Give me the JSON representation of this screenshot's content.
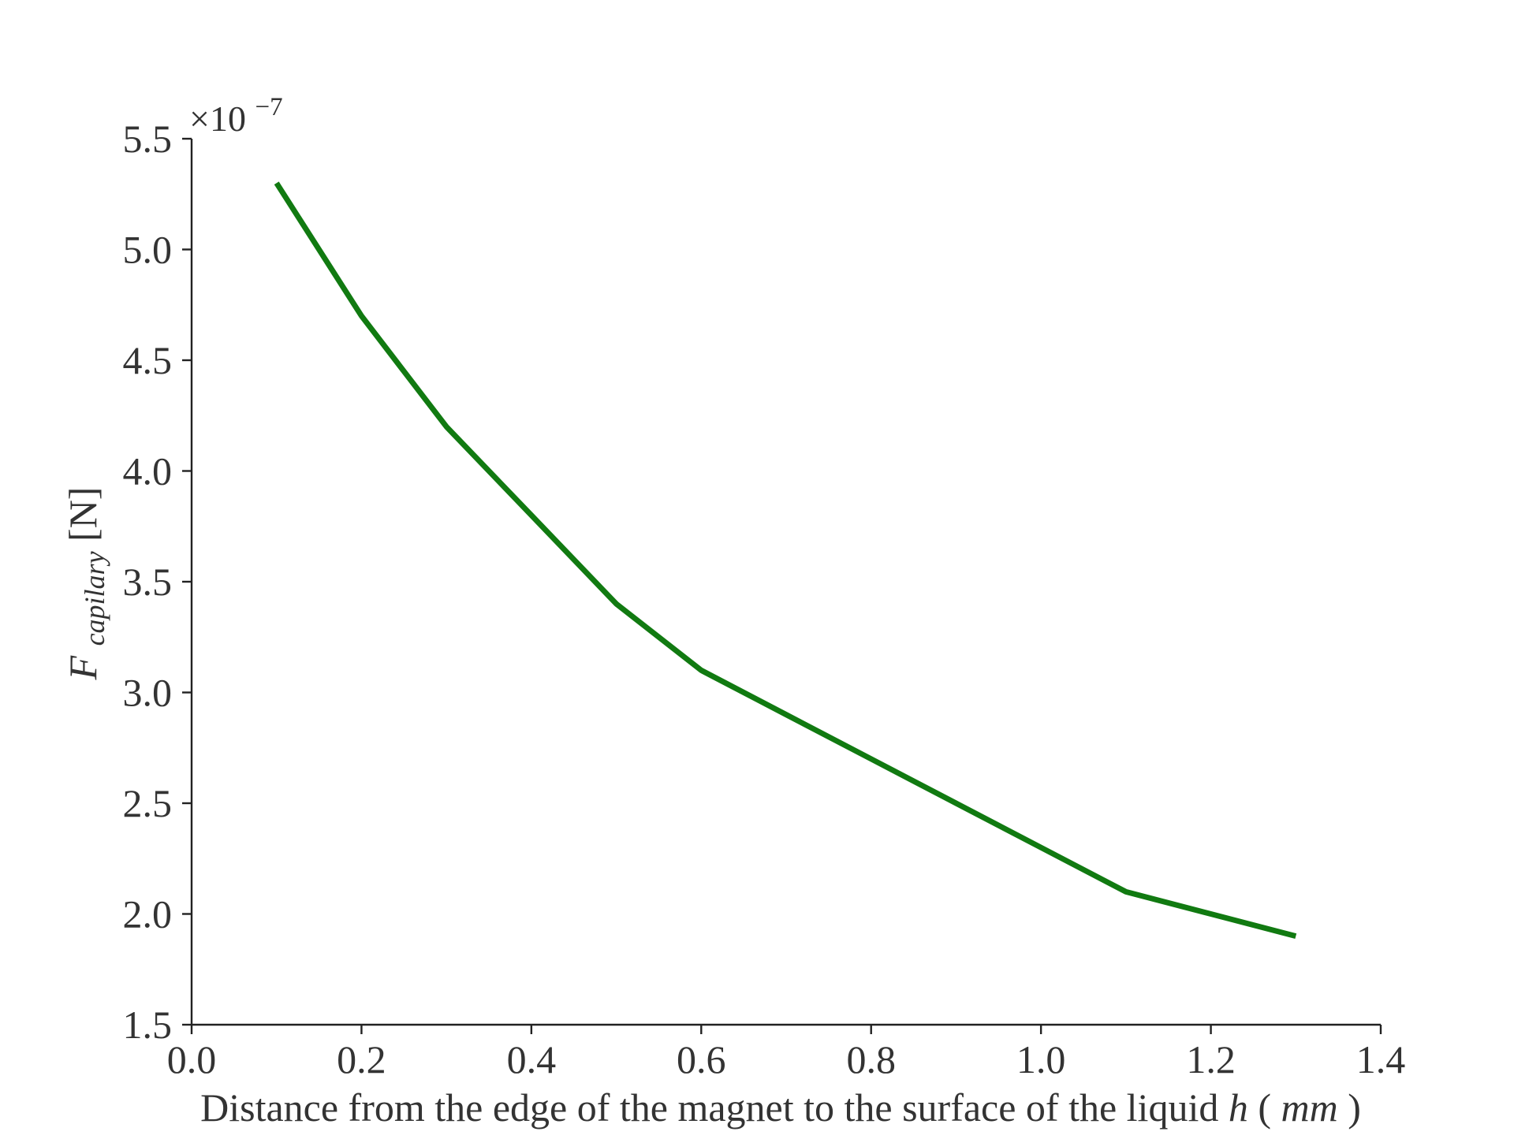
{
  "chart_data": {
    "type": "line",
    "title": "",
    "xlabel": {
      "main": "Distance from the edge of the magnet to the surface of the liquid ",
      "var": "h",
      "open": " (",
      "unit": "mm",
      "close": ")"
    },
    "ylabel": {
      "var": "F",
      "sub": "capilary",
      "unit": " [N]"
    },
    "y_offset_text": {
      "base": "×10",
      "exponent": "−7"
    },
    "xlim": [
      0.0,
      1.4
    ],
    "ylim": [
      1.5,
      5.5
    ],
    "x_ticks": [
      "0.0",
      "0.2",
      "0.4",
      "0.6",
      "0.8",
      "1.0",
      "1.2",
      "1.4"
    ],
    "y_ticks": [
      "1.5",
      "2.0",
      "2.5",
      "3.0",
      "3.5",
      "4.0",
      "4.5",
      "5.0",
      "5.5"
    ],
    "grid": false,
    "legend": "none",
    "series": [
      {
        "color": "#117a11",
        "x": [
          0.1,
          0.2,
          0.3,
          0.4,
          0.5,
          0.6,
          0.7,
          0.8,
          0.9,
          1.0,
          1.1,
          1.2,
          1.3
        ],
        "y": [
          5.3,
          4.7,
          4.2,
          3.8,
          3.4,
          3.1,
          2.9,
          2.7,
          2.5,
          2.3,
          2.1,
          2.0,
          1.9
        ]
      }
    ]
  }
}
